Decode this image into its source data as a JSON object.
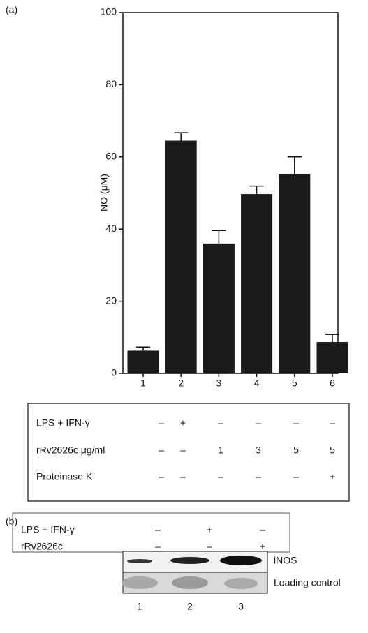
{
  "panel_labels": [
    "(a)",
    "(b)"
  ],
  "chart_data": {
    "type": "bar",
    "y_label": "NO (μM)",
    "categories": [
      "1",
      "2",
      "3",
      "4",
      "5",
      "6"
    ],
    "values": [
      6.3,
      64.5,
      36,
      49.7,
      55.2,
      8.7
    ],
    "errors": [
      1.0,
      2.2,
      3.6,
      2.2,
      4.8,
      2.1
    ],
    "color": "#1a1a1a",
    "ylim": [
      0,
      100
    ],
    "yticks": [
      0,
      20,
      40,
      60,
      80,
      100
    ],
    "grid": false
  },
  "treatment_table": {
    "rows": [
      {
        "label": "LPS + IFN-γ",
        "cells": [
          "–",
          "+",
          "–",
          "–",
          "–",
          "–"
        ]
      },
      {
        "label": "rRv2626c μg/ml",
        "cells": [
          "–",
          "–",
          "1",
          "3",
          "5",
          "5"
        ]
      },
      {
        "label": "Proteinase K",
        "cells": [
          "–",
          "–",
          "–",
          "–",
          "–",
          "+"
        ]
      }
    ]
  },
  "blot": {
    "conditions": [
      {
        "label": "LPS + IFN-γ",
        "cells": [
          "–",
          "+",
          "–"
        ]
      },
      {
        "label": "rRv2626c",
        "cells": [
          "–",
          "–",
          "+"
        ]
      }
    ],
    "bands": [
      "iNOS",
      "Loading control"
    ],
    "lanes": [
      "1",
      "2",
      "3"
    ]
  }
}
